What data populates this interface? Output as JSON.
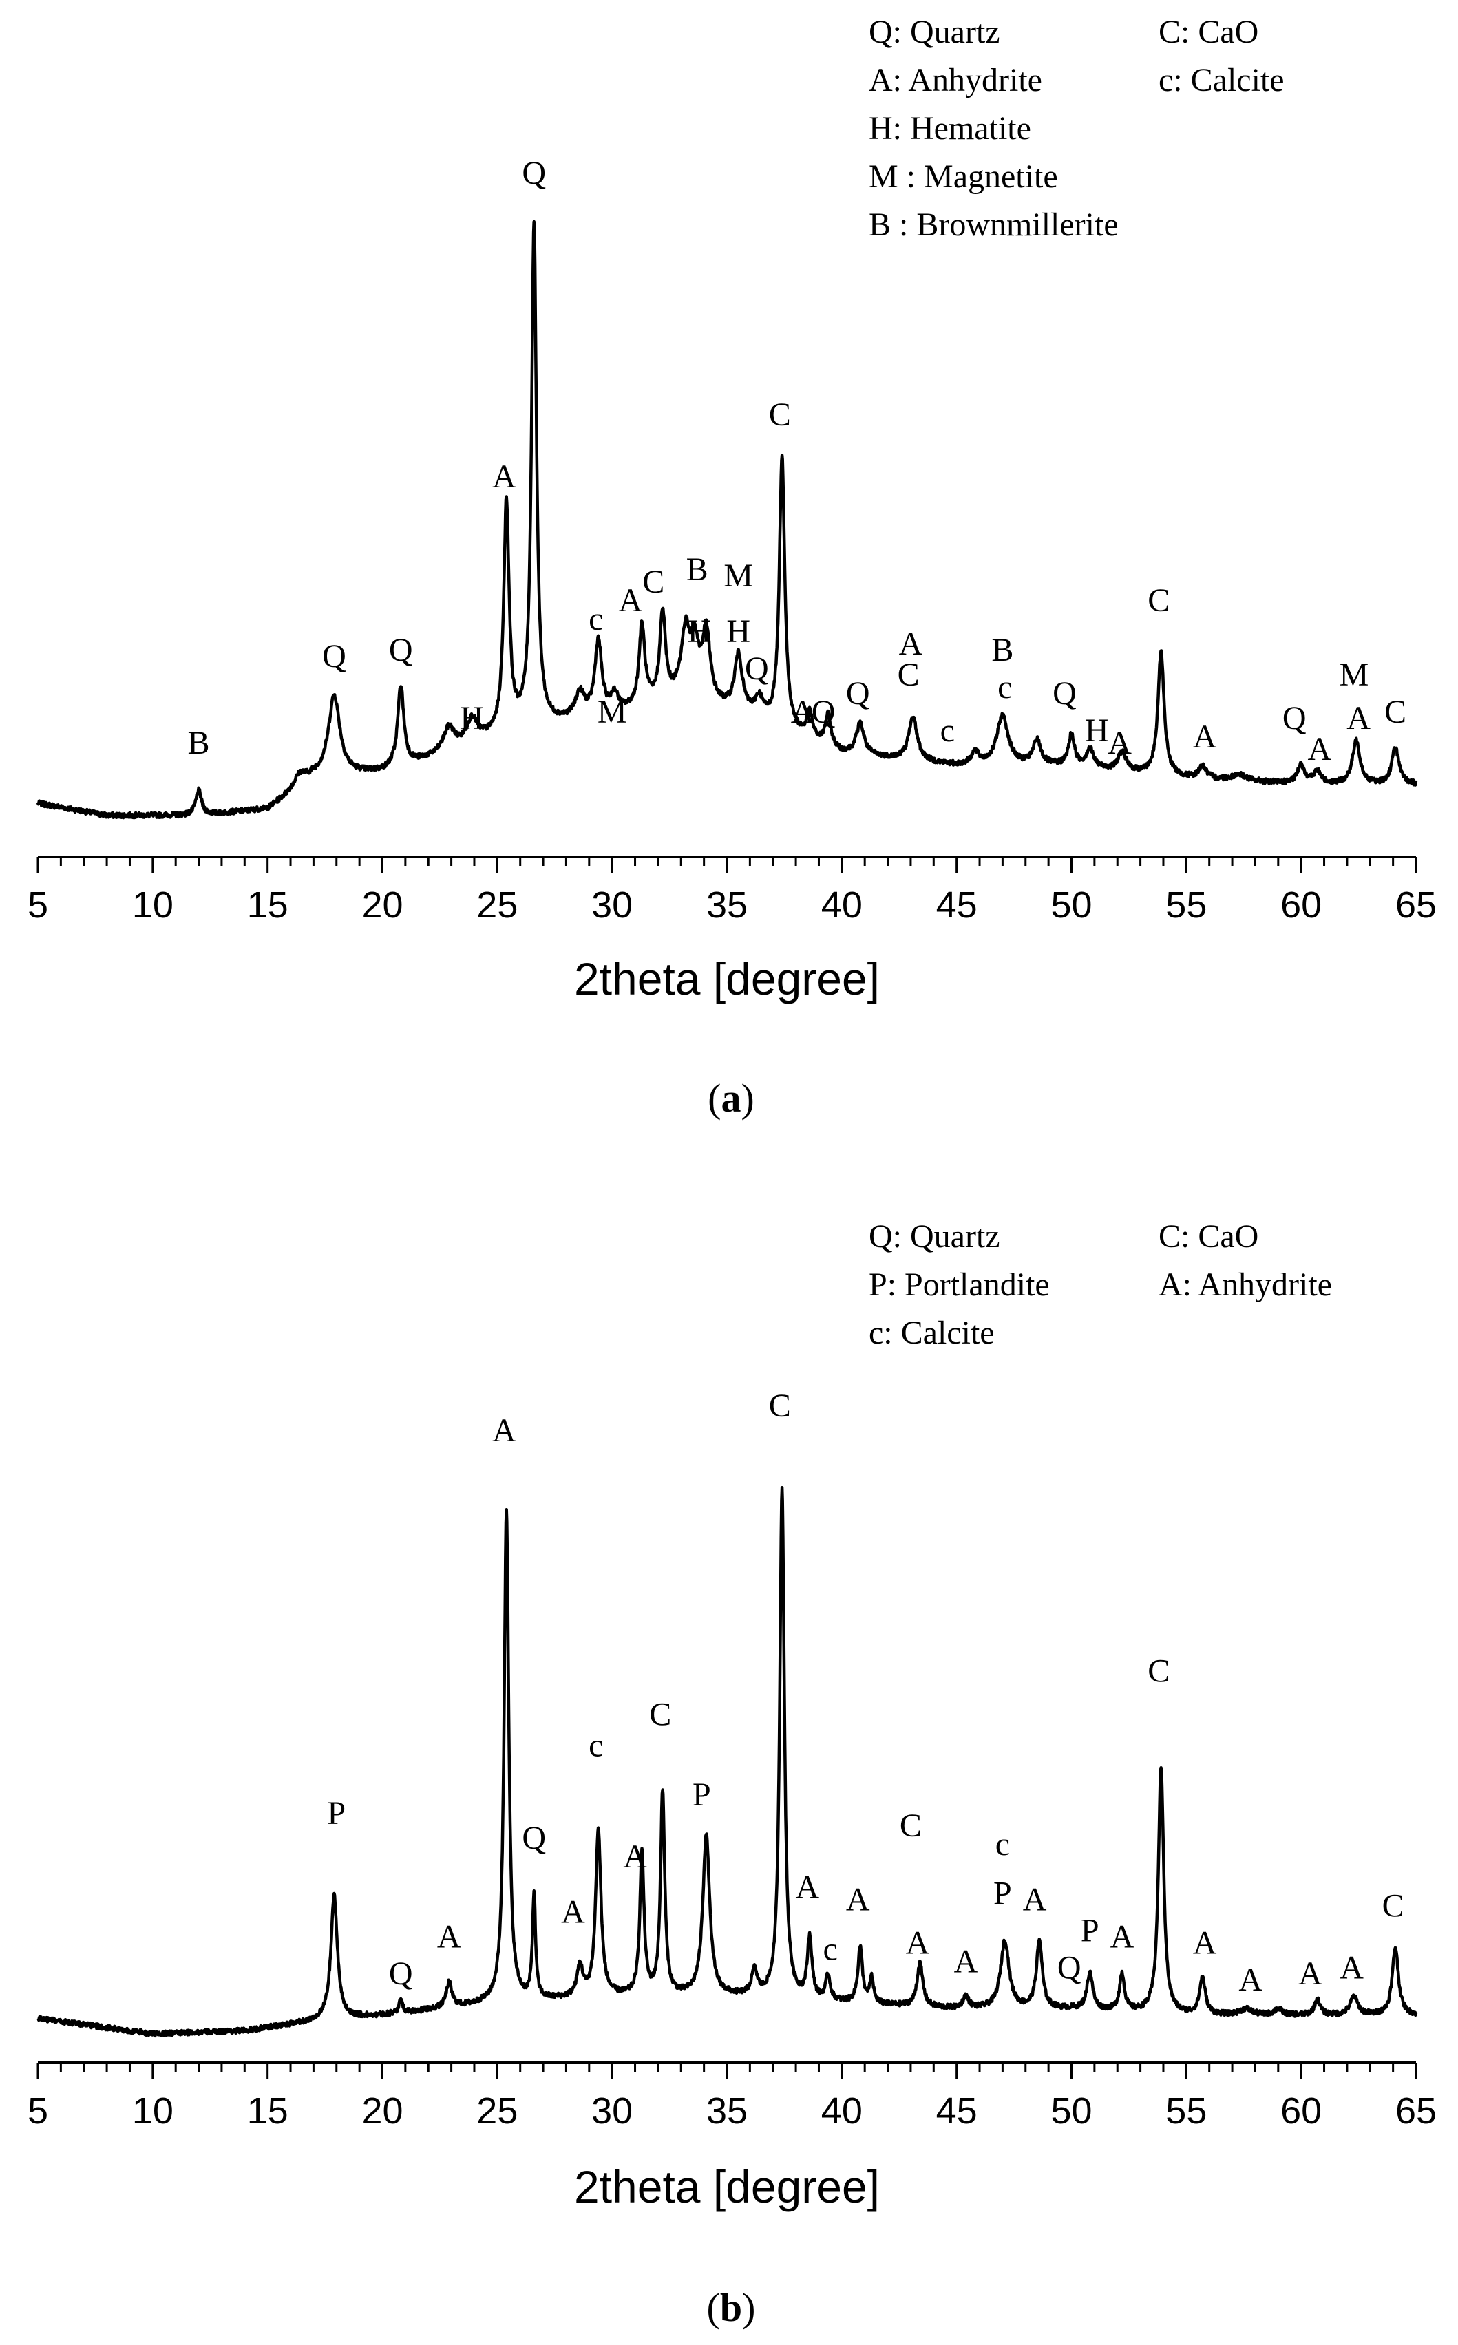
{
  "chart_data": [
    {
      "type": "line",
      "panel": "a",
      "caption": "(a)",
      "xlabel": "2theta [degree]",
      "ylabel": "",
      "xlim": [
        5,
        65
      ],
      "xticks": [
        5,
        10,
        15,
        20,
        25,
        30,
        35,
        40,
        45,
        50,
        55,
        60,
        65
      ],
      "color": "#000000",
      "legend": {
        "position": "top-right",
        "entries": [
          "Q: Quartz",
          "C: CaO",
          "A: Anhydrite",
          "c: Calcite",
          "H: Hematite",
          "M : Magnetite",
          "B : Brownmillerite"
        ]
      },
      "baseline": [
        [
          5,
          0.02
        ],
        [
          8,
          0.0
        ],
        [
          12,
          0.0
        ],
        [
          15,
          0.01
        ],
        [
          17,
          0.06
        ],
        [
          20,
          0.07
        ],
        [
          23,
          0.1
        ],
        [
          26,
          0.14
        ],
        [
          30,
          0.16
        ],
        [
          33,
          0.19
        ],
        [
          36,
          0.16
        ],
        [
          40,
          0.1
        ],
        [
          45,
          0.08
        ],
        [
          50,
          0.08
        ],
        [
          55,
          0.06
        ],
        [
          60,
          0.05
        ],
        [
          65,
          0.05
        ]
      ],
      "peaks": [
        {
          "x": 12.0,
          "y": 0.04,
          "w": 0.15
        },
        {
          "x": 16.4,
          "y": 0.02,
          "w": 0.3
        },
        {
          "x": 17.9,
          "y": 0.13,
          "w": 0.3
        },
        {
          "x": 20.8,
          "y": 0.13,
          "w": 0.16
        },
        {
          "x": 22.9,
          "y": 0.04,
          "w": 0.3
        },
        {
          "x": 23.9,
          "y": 0.04,
          "w": 0.3
        },
        {
          "x": 25.4,
          "y": 0.37,
          "w": 0.14
        },
        {
          "x": 26.6,
          "y": 0.81,
          "w": 0.13
        },
        {
          "x": 28.6,
          "y": 0.04,
          "w": 0.25
        },
        {
          "x": 29.4,
          "y": 0.12,
          "w": 0.18
        },
        {
          "x": 30.1,
          "y": 0.03,
          "w": 0.2
        },
        {
          "x": 31.3,
          "y": 0.13,
          "w": 0.15
        },
        {
          "x": 32.2,
          "y": 0.14,
          "w": 0.15
        },
        {
          "x": 33.2,
          "y": 0.1,
          "w": 0.22
        },
        {
          "x": 33.6,
          "y": 0.08,
          "w": 0.22
        },
        {
          "x": 34.1,
          "y": 0.11,
          "w": 0.2
        },
        {
          "x": 35.5,
          "y": 0.09,
          "w": 0.2
        },
        {
          "x": 36.4,
          "y": 0.03,
          "w": 0.2
        },
        {
          "x": 37.4,
          "y": 0.44,
          "w": 0.14
        },
        {
          "x": 38.6,
          "y": 0.04,
          "w": 0.15
        },
        {
          "x": 39.4,
          "y": 0.05,
          "w": 0.15
        },
        {
          "x": 40.8,
          "y": 0.05,
          "w": 0.2
        },
        {
          "x": 43.1,
          "y": 0.07,
          "w": 0.22
        },
        {
          "x": 45.8,
          "y": 0.02,
          "w": 0.2
        },
        {
          "x": 47.0,
          "y": 0.08,
          "w": 0.3
        },
        {
          "x": 48.5,
          "y": 0.04,
          "w": 0.2
        },
        {
          "x": 50.0,
          "y": 0.05,
          "w": 0.15
        },
        {
          "x": 50.8,
          "y": 0.03,
          "w": 0.18
        },
        {
          "x": 52.2,
          "y": 0.03,
          "w": 0.2
        },
        {
          "x": 53.9,
          "y": 0.2,
          "w": 0.16
        },
        {
          "x": 55.7,
          "y": 0.02,
          "w": 0.2
        },
        {
          "x": 57.3,
          "y": 0.01,
          "w": 0.4
        },
        {
          "x": 60.0,
          "y": 0.03,
          "w": 0.2
        },
        {
          "x": 60.7,
          "y": 0.02,
          "w": 0.2
        },
        {
          "x": 62.4,
          "y": 0.07,
          "w": 0.2
        },
        {
          "x": 64.1,
          "y": 0.06,
          "w": 0.18
        }
      ],
      "labels": [
        {
          "text": "B",
          "x": 12.0,
          "y": 0.1
        },
        {
          "text": "Q",
          "x": 17.9,
          "y": 0.24
        },
        {
          "text": "Q",
          "x": 20.8,
          "y": 0.25
        },
        {
          "text": "H",
          "x": 23.9,
          "y": 0.14
        },
        {
          "text": "A",
          "x": 25.3,
          "y": 0.53
        },
        {
          "text": "Q",
          "x": 26.6,
          "y": 1.02
        },
        {
          "text": "c",
          "x": 29.3,
          "y": 0.3
        },
        {
          "text": "M",
          "x": 30.0,
          "y": 0.15
        },
        {
          "text": "A",
          "x": 30.8,
          "y": 0.33
        },
        {
          "text": "C",
          "x": 31.8,
          "y": 0.36
        },
        {
          "text": "B",
          "x": 33.7,
          "y": 0.38
        },
        {
          "text": "H",
          "x": 33.8,
          "y": 0.28
        },
        {
          "text": "M",
          "x": 35.5,
          "y": 0.37
        },
        {
          "text": "H",
          "x": 35.5,
          "y": 0.28
        },
        {
          "text": "Q",
          "x": 36.3,
          "y": 0.22
        },
        {
          "text": "C",
          "x": 37.3,
          "y": 0.63
        },
        {
          "text": "A",
          "x": 38.3,
          "y": 0.15
        },
        {
          "text": "Q",
          "x": 39.2,
          "y": 0.15
        },
        {
          "text": "Q",
          "x": 40.7,
          "y": 0.18
        },
        {
          "text": "A",
          "x": 43.0,
          "y": 0.26
        },
        {
          "text": "C",
          "x": 42.9,
          "y": 0.21
        },
        {
          "text": "c",
          "x": 44.6,
          "y": 0.12
        },
        {
          "text": "B",
          "x": 47.0,
          "y": 0.25
        },
        {
          "text": "c",
          "x": 47.1,
          "y": 0.19
        },
        {
          "text": "Q",
          "x": 49.7,
          "y": 0.18
        },
        {
          "text": "H",
          "x": 51.1,
          "y": 0.12
        },
        {
          "text": "A",
          "x": 52.1,
          "y": 0.1
        },
        {
          "text": "C",
          "x": 53.8,
          "y": 0.33
        },
        {
          "text": "A",
          "x": 55.8,
          "y": 0.11
        },
        {
          "text": "Q",
          "x": 59.7,
          "y": 0.14
        },
        {
          "text": "A",
          "x": 60.8,
          "y": 0.09
        },
        {
          "text": "M",
          "x": 62.3,
          "y": 0.21
        },
        {
          "text": "A",
          "x": 62.5,
          "y": 0.14
        },
        {
          "text": "C",
          "x": 64.1,
          "y": 0.15
        }
      ]
    },
    {
      "type": "line",
      "panel": "b",
      "caption": "(b)",
      "xlabel": "2theta [degree]",
      "ylabel": "",
      "xlim": [
        5,
        65
      ],
      "xticks": [
        5,
        10,
        15,
        20,
        25,
        30,
        35,
        40,
        45,
        50,
        55,
        60,
        65
      ],
      "color": "#000000",
      "legend": {
        "position": "top-right",
        "entries": [
          "Q: Quartz",
          "C: CaO",
          "P: Portlandite",
          "A: Anhydrite",
          "c: Calcite"
        ]
      },
      "baseline": [
        [
          5,
          0.025
        ],
        [
          8,
          0.01
        ],
        [
          10,
          0.0
        ],
        [
          14,
          0.005
        ],
        [
          17,
          0.02
        ],
        [
          20,
          0.03
        ],
        [
          25,
          0.05
        ],
        [
          30,
          0.06
        ],
        [
          35,
          0.06
        ],
        [
          40,
          0.05
        ],
        [
          45,
          0.04
        ],
        [
          50,
          0.04
        ],
        [
          55,
          0.03
        ],
        [
          60,
          0.03
        ],
        [
          65,
          0.03
        ]
      ],
      "peaks": [
        {
          "x": 17.9,
          "y": 0.2,
          "w": 0.17
        },
        {
          "x": 20.8,
          "y": 0.02,
          "w": 0.1
        },
        {
          "x": 22.9,
          "y": 0.04,
          "w": 0.15
        },
        {
          "x": 25.4,
          "y": 0.8,
          "w": 0.12
        },
        {
          "x": 26.6,
          "y": 0.17,
          "w": 0.08
        },
        {
          "x": 28.6,
          "y": 0.05,
          "w": 0.15
        },
        {
          "x": 29.4,
          "y": 0.27,
          "w": 0.14
        },
        {
          "x": 31.3,
          "y": 0.23,
          "w": 0.11
        },
        {
          "x": 32.2,
          "y": 0.33,
          "w": 0.11
        },
        {
          "x": 34.1,
          "y": 0.26,
          "w": 0.18
        },
        {
          "x": 36.2,
          "y": 0.04,
          "w": 0.15
        },
        {
          "x": 37.4,
          "y": 0.83,
          "w": 0.12
        },
        {
          "x": 38.6,
          "y": 0.1,
          "w": 0.12
        },
        {
          "x": 39.4,
          "y": 0.04,
          "w": 0.12
        },
        {
          "x": 40.8,
          "y": 0.09,
          "w": 0.12
        },
        {
          "x": 41.3,
          "y": 0.04,
          "w": 0.1
        },
        {
          "x": 43.4,
          "y": 0.07,
          "w": 0.15
        },
        {
          "x": 45.4,
          "y": 0.02,
          "w": 0.15
        },
        {
          "x": 47.1,
          "y": 0.11,
          "w": 0.22
        },
        {
          "x": 48.6,
          "y": 0.11,
          "w": 0.15
        },
        {
          "x": 50.8,
          "y": 0.06,
          "w": 0.15
        },
        {
          "x": 52.2,
          "y": 0.06,
          "w": 0.13
        },
        {
          "x": 53.9,
          "y": 0.4,
          "w": 0.14
        },
        {
          "x": 55.7,
          "y": 0.06,
          "w": 0.15
        },
        {
          "x": 57.6,
          "y": 0.01,
          "w": 0.3
        },
        {
          "x": 59.0,
          "y": 0.01,
          "w": 0.2
        },
        {
          "x": 60.7,
          "y": 0.025,
          "w": 0.15
        },
        {
          "x": 62.3,
          "y": 0.03,
          "w": 0.2
        },
        {
          "x": 64.1,
          "y": 0.11,
          "w": 0.16
        }
      ],
      "labels": [
        {
          "text": "P",
          "x": 18.0,
          "y": 0.34
        },
        {
          "text": "Q",
          "x": 20.8,
          "y": 0.08
        },
        {
          "text": "A",
          "x": 22.9,
          "y": 0.14
        },
        {
          "text": "A",
          "x": 25.3,
          "y": 0.96
        },
        {
          "text": "Q",
          "x": 26.6,
          "y": 0.3
        },
        {
          "text": "A",
          "x": 28.3,
          "y": 0.18
        },
        {
          "text": "c",
          "x": 29.3,
          "y": 0.45
        },
        {
          "text": "A",
          "x": 31.0,
          "y": 0.27
        },
        {
          "text": "C",
          "x": 32.1,
          "y": 0.5
        },
        {
          "text": "P",
          "x": 33.9,
          "y": 0.37
        },
        {
          "text": "C",
          "x": 37.3,
          "y": 1.0
        },
        {
          "text": "A",
          "x": 38.5,
          "y": 0.22
        },
        {
          "text": "c",
          "x": 39.5,
          "y": 0.12
        },
        {
          "text": "A",
          "x": 40.7,
          "y": 0.2
        },
        {
          "text": "C",
          "x": 43.0,
          "y": 0.32
        },
        {
          "text": "A",
          "x": 43.3,
          "y": 0.13
        },
        {
          "text": "A",
          "x": 45.4,
          "y": 0.1
        },
        {
          "text": "c",
          "x": 47.0,
          "y": 0.29
        },
        {
          "text": "P",
          "x": 47.0,
          "y": 0.21
        },
        {
          "text": "A",
          "x": 48.4,
          "y": 0.2
        },
        {
          "text": "P",
          "x": 50.8,
          "y": 0.15
        },
        {
          "text": "Q",
          "x": 49.9,
          "y": 0.09
        },
        {
          "text": "A",
          "x": 52.2,
          "y": 0.14
        },
        {
          "text": "C",
          "x": 53.8,
          "y": 0.57
        },
        {
          "text": "A",
          "x": 55.8,
          "y": 0.13
        },
        {
          "text": "A",
          "x": 57.8,
          "y": 0.07
        },
        {
          "text": "A",
          "x": 60.4,
          "y": 0.08
        },
        {
          "text": "A",
          "x": 62.2,
          "y": 0.09
        },
        {
          "text": "C",
          "x": 64.0,
          "y": 0.19
        }
      ]
    }
  ]
}
